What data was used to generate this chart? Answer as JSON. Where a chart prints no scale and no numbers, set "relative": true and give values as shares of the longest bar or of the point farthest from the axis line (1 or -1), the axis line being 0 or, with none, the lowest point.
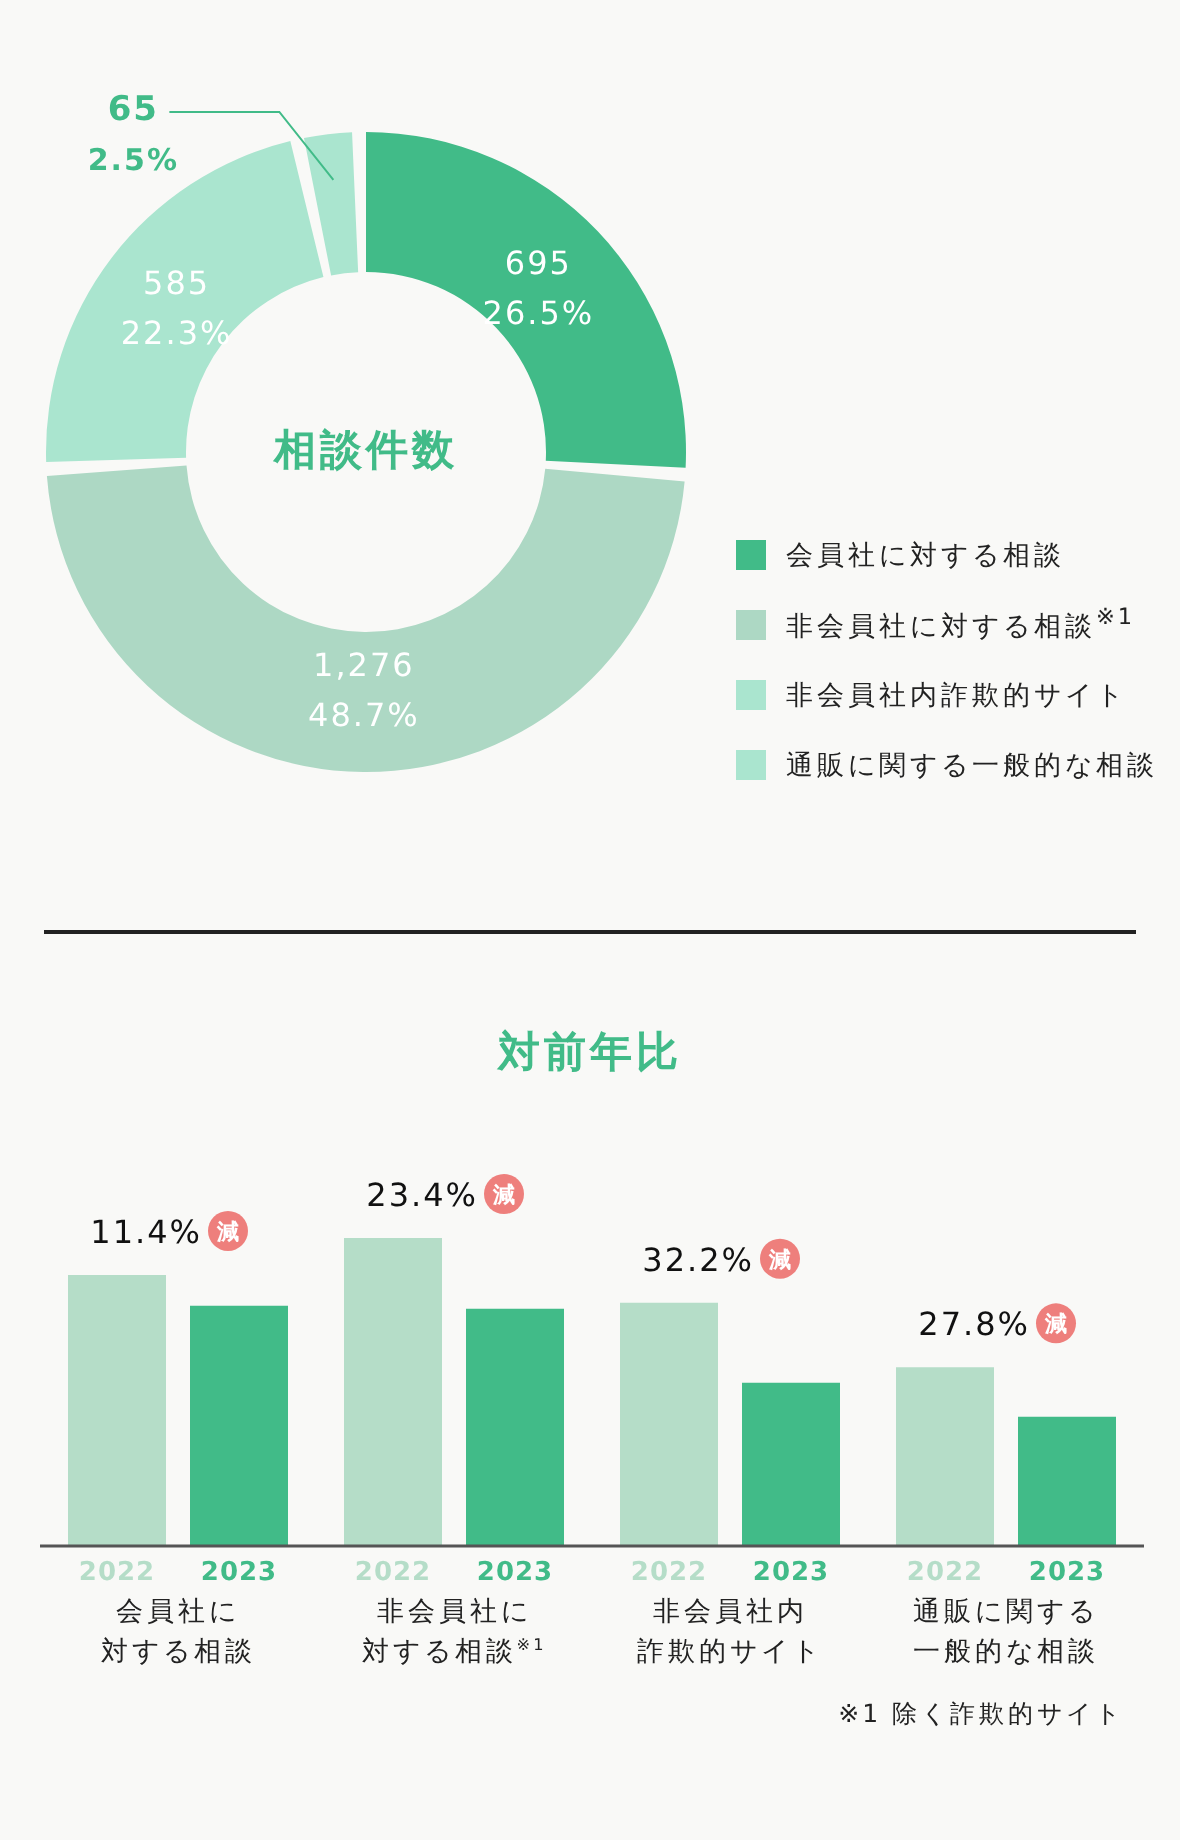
{
  "chart_data": [
    {
      "type": "donut",
      "title": "相談件数",
      "categories": [
        "会員社に対する相談",
        "非会員社に対する相談$^{※1}$",
        "非会員社内詐欺的サイト",
        "通販に関する一般的な相談"
      ],
      "values": [
        695,
        1276,
        585,
        65
      ],
      "colors": [
        "#41bb88",
        "#add8c4",
        "#aae5cf",
        "#aae5cf"
      ],
      "value_labels": [
        "695\n26.5%",
        "1,276\n48.7%",
        "585\n22.3%",
        "65\n2.5%"
      ],
      "legend": "right"
    },
    {
      "type": "bar",
      "title": "対前年比",
      "categories": [
        "会員社に対する相談",
        "非会員社に対する相談$^{※1}$",
        "非会員社内詐欺的サイト",
        "通販に関する一般的な相談"
      ],
      "relative": true,
      "series": [
        {
          "name": "2022",
          "color": "#b5ddc8",
          "values": [
            0.88,
            1,
            0.79,
            0.58
          ]
        },
        {
          "name": "2023",
          "color": "#41bb88",
          "values": [
            0.78,
            0.77,
            0.53,
            0.42
          ]
        }
      ],
      "annotations": [
        "11.4% 減",
        "23.4% 減",
        "32.2% 減",
        "27.8% 減",
        "※1 除く詐欺的サイト"
      ]
    }
  ]
}
